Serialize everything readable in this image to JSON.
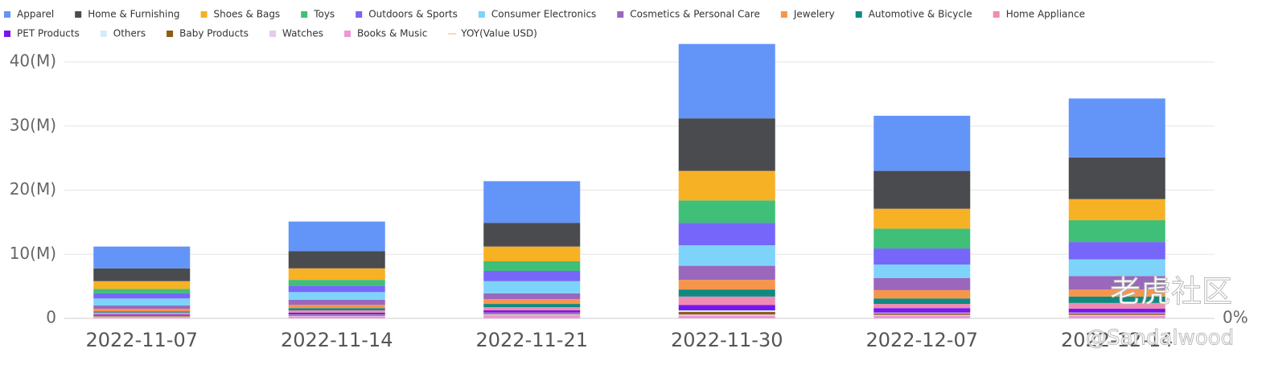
{
  "chart_data": {
    "type": "stacked_bar",
    "categories": [
      "2022-11-07",
      "2022-11-14",
      "2022-11-21",
      "2022-11-30",
      "2022-12-07",
      "2022-12-14"
    ],
    "series": [
      {
        "name": "Apparel",
        "color": "#6395f9",
        "values": [
          3.4,
          4.6,
          6.5,
          11.6,
          8.6,
          9.2
        ]
      },
      {
        "name": "Home & Furnishing",
        "color": "#4a4b4f",
        "values": [
          2.0,
          2.7,
          3.7,
          8.2,
          5.9,
          6.5
        ]
      },
      {
        "name": "Shoes & Bags",
        "color": "#f7b125",
        "values": [
          1.2,
          1.8,
          2.3,
          4.6,
          3.1,
          3.3
        ]
      },
      {
        "name": "Toys",
        "color": "#3fbf78",
        "values": [
          0.7,
          0.9,
          1.5,
          3.5,
          3.1,
          3.4
        ]
      },
      {
        "name": "Outdoors & Sports",
        "color": "#7666f9",
        "values": [
          0.8,
          1.0,
          1.6,
          3.5,
          2.5,
          2.7
        ]
      },
      {
        "name": "Consumer Electronics",
        "color": "#7dd3f9",
        "values": [
          1.1,
          1.2,
          1.9,
          3.2,
          2.1,
          2.6
        ]
      },
      {
        "name": "Cosmetics & Personal Care",
        "color": "#9a67bd",
        "values": [
          0.5,
          0.8,
          0.9,
          2.2,
          1.9,
          2.1
        ]
      },
      {
        "name": "Jewelery",
        "color": "#f6964a",
        "values": [
          0.4,
          0.5,
          0.75,
          1.5,
          1.3,
          1.1
        ]
      },
      {
        "name": "Automotive & Bicycle",
        "color": "#0f8a80",
        "values": [
          0.2,
          0.35,
          0.5,
          1.1,
          0.85,
          1.0
        ]
      },
      {
        "name": "Home Appliance",
        "color": "#f08bb4",
        "values": [
          0.3,
          0.35,
          0.5,
          1.3,
          0.65,
          0.9
        ]
      },
      {
        "name": "PET Products",
        "color": "#7617ef",
        "values": [
          0.2,
          0.3,
          0.35,
          0.85,
          0.7,
          0.6
        ]
      },
      {
        "name": "Others",
        "color": "#d4ecf9",
        "values": [
          0.05,
          0.05,
          0.05,
          0.25,
          0.1,
          0.1
        ]
      },
      {
        "name": "Baby Products",
        "color": "#8c5d14",
        "values": [
          0.1,
          0.15,
          0.2,
          0.4,
          0.25,
          0.25
        ]
      },
      {
        "name": "Watches",
        "color": "#e3cbec",
        "values": [
          0.05,
          0.1,
          0.15,
          0.2,
          0.15,
          0.15
        ]
      },
      {
        "name": "Books & Music",
        "color": "#ea98d8",
        "values": [
          0.2,
          0.3,
          0.5,
          0.4,
          0.4,
          0.4
        ]
      },
      {
        "name": "YOY(Value USD)",
        "color": "#f8c8a8",
        "type": "line",
        "axis": "y2",
        "values": [
          null,
          null,
          null,
          null,
          null,
          null
        ]
      }
    ],
    "ylim": [
      0,
      42
    ],
    "yticks": [
      {
        "value": 0,
        "label": "0"
      },
      {
        "value": 10,
        "label": "10(M)"
      },
      {
        "value": 20,
        "label": "20(M)"
      },
      {
        "value": 30,
        "label": "30(M)"
      },
      {
        "value": 40,
        "label": "40(M)"
      }
    ],
    "y2lim": [
      0,
      100
    ],
    "y2ticks": [
      {
        "value": 0,
        "label": "0%"
      }
    ],
    "grid": true,
    "legend": "top-left",
    "watermark": [
      "老虎社区",
      "@Sandalwood"
    ]
  }
}
